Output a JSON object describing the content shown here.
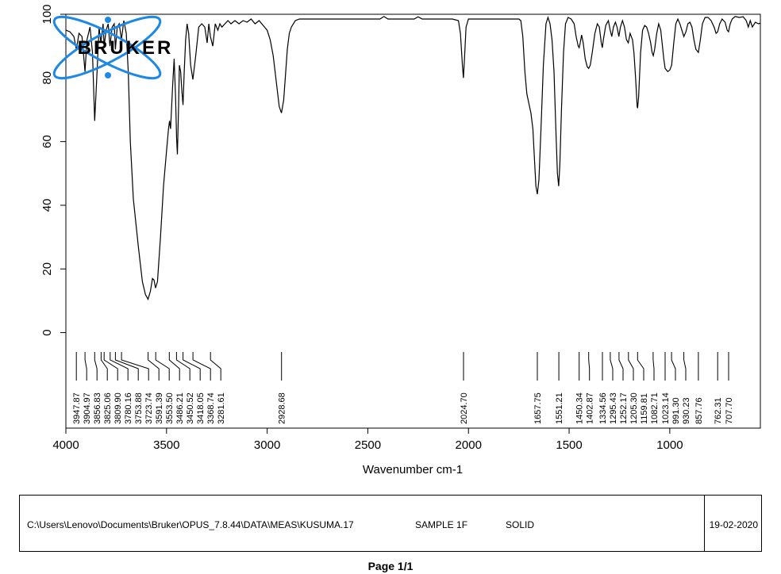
{
  "chart_data": {
    "type": "line",
    "xlabel": "Wavenumber cm-1",
    "ylabel": "",
    "xlim": [
      4000,
      550
    ],
    "ylim": [
      -30,
      100
    ],
    "x_reversed": true,
    "x_ticks": [
      4000,
      3500,
      3000,
      2500,
      2000,
      1500,
      1000
    ],
    "y_ticks": [
      0,
      20,
      40,
      60,
      80,
      100
    ],
    "grid": false,
    "series": [
      {
        "name": "",
        "color": "#000000",
        "points": [
          [
            4000,
            95
          ],
          [
            3980,
            94.5
          ],
          [
            3960,
            93
          ],
          [
            3948,
            89
          ],
          [
            3935,
            94
          ],
          [
            3920,
            93
          ],
          [
            3905,
            82
          ],
          [
            3895,
            92
          ],
          [
            3880,
            96
          ],
          [
            3868,
            88
          ],
          [
            3857,
            66.5
          ],
          [
            3845,
            82
          ],
          [
            3835,
            96
          ],
          [
            3826,
            91
          ],
          [
            3815,
            97
          ],
          [
            3810,
            90
          ],
          [
            3800,
            95
          ],
          [
            3790,
            97
          ],
          [
            3781,
            90
          ],
          [
            3770,
            96
          ],
          [
            3760,
            97
          ],
          [
            3754,
            89
          ],
          [
            3745,
            96
          ],
          [
            3735,
            97
          ],
          [
            3724,
            92
          ],
          [
            3712,
            98
          ],
          [
            3700,
            94
          ],
          [
            3690,
            82
          ],
          [
            3680,
            60
          ],
          [
            3665,
            42
          ],
          [
            3640,
            27
          ],
          [
            3620,
            16
          ],
          [
            3605,
            12
          ],
          [
            3592,
            10.5
          ],
          [
            3580,
            13
          ],
          [
            3570,
            17
          ],
          [
            3562,
            16.5
          ],
          [
            3555,
            14
          ],
          [
            3545,
            16
          ],
          [
            3530,
            30
          ],
          [
            3515,
            46
          ],
          [
            3500,
            57
          ],
          [
            3490,
            64
          ],
          [
            3485,
            66.5
          ],
          [
            3480,
            64
          ],
          [
            3470,
            77
          ],
          [
            3462,
            86
          ],
          [
            3455,
            74
          ],
          [
            3450,
            61
          ],
          [
            3446,
            56
          ],
          [
            3440,
            71
          ],
          [
            3436,
            84
          ],
          [
            3430,
            82
          ],
          [
            3424,
            76
          ],
          [
            3418,
            71.5
          ],
          [
            3412,
            82
          ],
          [
            3405,
            92
          ],
          [
            3398,
            97
          ],
          [
            3390,
            94
          ],
          [
            3380,
            84
          ],
          [
            3369,
            79.5
          ],
          [
            3355,
            87
          ],
          [
            3340,
            96
          ],
          [
            3325,
            97
          ],
          [
            3310,
            96
          ],
          [
            3298,
            91
          ],
          [
            3290,
            97
          ],
          [
            3282,
            93
          ],
          [
            3270,
            90
          ],
          [
            3258,
            97
          ],
          [
            3245,
            95
          ],
          [
            3235,
            97
          ],
          [
            3225,
            96
          ],
          [
            3210,
            97
          ],
          [
            3195,
            98
          ],
          [
            3180,
            97
          ],
          [
            3160,
            98
          ],
          [
            3140,
            97
          ],
          [
            3120,
            98
          ],
          [
            3100,
            97.5
          ],
          [
            3080,
            98.5
          ],
          [
            3060,
            97
          ],
          [
            3040,
            98
          ],
          [
            3020,
            96.5
          ],
          [
            3000,
            95
          ],
          [
            2985,
            92
          ],
          [
            2970,
            87
          ],
          [
            2955,
            79
          ],
          [
            2940,
            71
          ],
          [
            2929,
            69
          ],
          [
            2918,
            73
          ],
          [
            2908,
            82
          ],
          [
            2900,
            89
          ],
          [
            2890,
            94
          ],
          [
            2880,
            96
          ],
          [
            2860,
            98
          ],
          [
            2840,
            98.5
          ],
          [
            2800,
            98.5
          ],
          [
            2700,
            98.5
          ],
          [
            2600,
            98.5
          ],
          [
            2500,
            98.5
          ],
          [
            2440,
            98.5
          ],
          [
            2420,
            99.3
          ],
          [
            2400,
            98.5
          ],
          [
            2350,
            98.5
          ],
          [
            2300,
            98.5
          ],
          [
            2270,
            98.5
          ],
          [
            2250,
            99.2
          ],
          [
            2230,
            98.5
          ],
          [
            2150,
            98.5
          ],
          [
            2080,
            98.5
          ],
          [
            2050,
            98
          ],
          [
            2040,
            94
          ],
          [
            2030,
            84
          ],
          [
            2025,
            80
          ],
          [
            2020,
            86
          ],
          [
            2012,
            96
          ],
          [
            2000,
            98.5
          ],
          [
            1950,
            98.5
          ],
          [
            1900,
            98.5
          ],
          [
            1850,
            98.5
          ],
          [
            1800,
            98.5
          ],
          [
            1750,
            98.5
          ],
          [
            1740,
            98
          ],
          [
            1730,
            93
          ],
          [
            1720,
            82
          ],
          [
            1710,
            75
          ],
          [
            1700,
            72
          ],
          [
            1690,
            69
          ],
          [
            1680,
            64
          ],
          [
            1670,
            52
          ],
          [
            1665,
            46
          ],
          [
            1658,
            43.5
          ],
          [
            1650,
            48
          ],
          [
            1640,
            64
          ],
          [
            1628,
            84
          ],
          [
            1615,
            97
          ],
          [
            1605,
            99
          ],
          [
            1595,
            97
          ],
          [
            1585,
            92
          ],
          [
            1575,
            82
          ],
          [
            1565,
            62
          ],
          [
            1558,
            50
          ],
          [
            1552,
            46
          ],
          [
            1546,
            53
          ],
          [
            1538,
            70
          ],
          [
            1528,
            88
          ],
          [
            1518,
            97
          ],
          [
            1505,
            99
          ],
          [
            1490,
            98.5
          ],
          [
            1475,
            97
          ],
          [
            1465,
            93
          ],
          [
            1455,
            90
          ],
          [
            1450,
            89.5
          ],
          [
            1445,
            91
          ],
          [
            1438,
            93.5
          ],
          [
            1430,
            91
          ],
          [
            1420,
            86
          ],
          [
            1410,
            83.5
          ],
          [
            1403,
            83
          ],
          [
            1395,
            84
          ],
          [
            1385,
            88
          ],
          [
            1372,
            94
          ],
          [
            1360,
            97
          ],
          [
            1350,
            96
          ],
          [
            1340,
            91
          ],
          [
            1335,
            89.5
          ],
          [
            1330,
            92
          ],
          [
            1318,
            96.5
          ],
          [
            1305,
            98
          ],
          [
            1296,
            95
          ],
          [
            1288,
            93
          ],
          [
            1280,
            96
          ],
          [
            1270,
            97.5
          ],
          [
            1262,
            96
          ],
          [
            1253,
            93
          ],
          [
            1245,
            96
          ],
          [
            1235,
            98
          ],
          [
            1225,
            96
          ],
          [
            1215,
            92
          ],
          [
            1206,
            91
          ],
          [
            1197,
            94
          ],
          [
            1185,
            92
          ],
          [
            1178,
            88
          ],
          [
            1170,
            80
          ],
          [
            1162,
            71
          ],
          [
            1160,
            70.5
          ],
          [
            1155,
            74
          ],
          [
            1145,
            88
          ],
          [
            1135,
            95
          ],
          [
            1125,
            96.5
          ],
          [
            1115,
            96
          ],
          [
            1105,
            94
          ],
          [
            1095,
            91
          ],
          [
            1088,
            88
          ],
          [
            1082,
            87
          ],
          [
            1075,
            89
          ],
          [
            1065,
            94
          ],
          [
            1055,
            97
          ],
          [
            1045,
            95
          ],
          [
            1038,
            91
          ],
          [
            1030,
            86
          ],
          [
            1023,
            83
          ],
          [
            1010,
            82
          ],
          [
            1000,
            82.5
          ],
          [
            991,
            84
          ],
          [
            980,
            91
          ],
          [
            970,
            97
          ],
          [
            960,
            98.5
          ],
          [
            950,
            97
          ],
          [
            940,
            95
          ],
          [
            930,
            93
          ],
          [
            920,
            94.5
          ],
          [
            910,
            97
          ],
          [
            900,
            97.5
          ],
          [
            890,
            96
          ],
          [
            880,
            92
          ],
          [
            870,
            89
          ],
          [
            858,
            88
          ],
          [
            848,
            92
          ],
          [
            838,
            97
          ],
          [
            825,
            99
          ],
          [
            810,
            99
          ],
          [
            795,
            98
          ],
          [
            780,
            96
          ],
          [
            770,
            94
          ],
          [
            762,
            94.5
          ],
          [
            752,
            97
          ],
          [
            740,
            98.5
          ],
          [
            725,
            97.5
          ],
          [
            715,
            95
          ],
          [
            708,
            94.5
          ],
          [
            700,
            97
          ],
          [
            690,
            98.5
          ],
          [
            675,
            99.3
          ],
          [
            655,
            99
          ],
          [
            635,
            99.2
          ],
          [
            620,
            98
          ],
          [
            610,
            96
          ],
          [
            600,
            98
          ],
          [
            590,
            96
          ],
          [
            575,
            97.5
          ],
          [
            560,
            97
          ],
          [
            550,
            97.2
          ]
        ]
      }
    ],
    "peak_labels": [
      "3947.87",
      "3904.97",
      "3856.83",
      "3825.06",
      "3809.90",
      "3780.16",
      "3753.88",
      "3723.74",
      "3591.39",
      "3553.50",
      "3486.21",
      "3450.52",
      "3418.05",
      "3368.74",
      "3281.61",
      "2928.68",
      "2024.70",
      "1657.75",
      "1551.21",
      "1450.34",
      "1402.87",
      "1334.56",
      "1295.43",
      "1252.17",
      "1205.30",
      "1159.81",
      "1082.71",
      "1023.14",
      "991.30",
      "930.23",
      "857.76",
      "762.31",
      "707.70"
    ]
  },
  "logo": {
    "text": "BRUKER",
    "color": "#1e88e5"
  },
  "footer": {
    "path": "C:\\Users\\Lenovo\\Documents\\Bruker\\OPUS_7.8.44\\DATA\\MEAS\\KUSUMA.17",
    "sample": "SAMPLE 1F",
    "state": "SOLID",
    "date": "19-02-2020"
  },
  "page_label": "Page 1/1"
}
